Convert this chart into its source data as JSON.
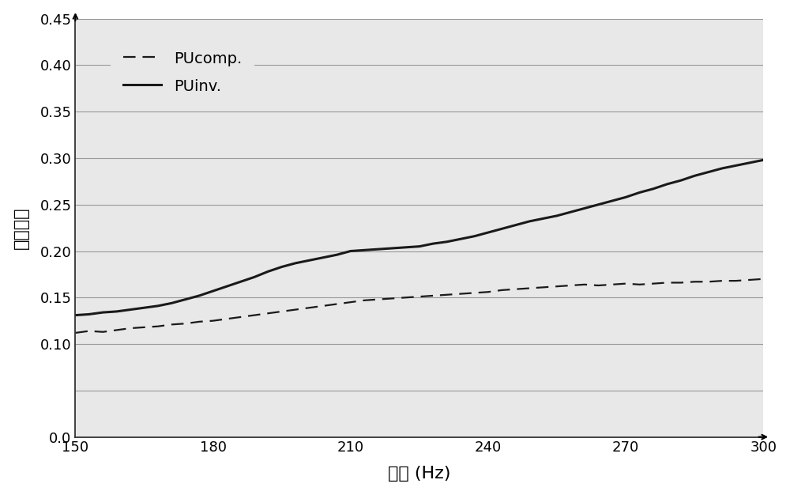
{
  "xlabel": "频率 (Hz)",
  "ylabel": "吸声系数",
  "xlim": [
    150,
    300
  ],
  "ylim": [
    0.0,
    0.45
  ],
  "xticks": [
    150,
    180,
    210,
    240,
    270,
    300
  ],
  "yticks": [
    0.0,
    0.05,
    0.1,
    0.15,
    0.2,
    0.25,
    0.3,
    0.35,
    0.4,
    0.45
  ],
  "ytick_labels": [
    "0.0",
    "",
    "0.10",
    "0.15",
    "0.20",
    "0.25",
    "0.30",
    "0.35",
    "0.40",
    "0.45"
  ],
  "background_color": "#ffffff",
  "plot_bg_color": "#e8e8e8",
  "line_color": "#1a1a1a",
  "grid_color": "#999999",
  "legend_labels": [
    "PUcomp.",
    "PUinv."
  ],
  "PUcomp_x": [
    150,
    153,
    156,
    159,
    162,
    165,
    168,
    171,
    174,
    177,
    180,
    183,
    186,
    189,
    192,
    195,
    198,
    201,
    204,
    207,
    210,
    213,
    216,
    219,
    222,
    225,
    228,
    231,
    234,
    237,
    240,
    243,
    246,
    249,
    252,
    255,
    258,
    261,
    264,
    267,
    270,
    273,
    276,
    279,
    282,
    285,
    288,
    291,
    294,
    297,
    300
  ],
  "PUcomp_y": [
    0.112,
    0.114,
    0.113,
    0.115,
    0.117,
    0.118,
    0.119,
    0.121,
    0.122,
    0.124,
    0.125,
    0.127,
    0.129,
    0.131,
    0.133,
    0.135,
    0.137,
    0.139,
    0.141,
    0.143,
    0.145,
    0.147,
    0.148,
    0.149,
    0.15,
    0.151,
    0.152,
    0.153,
    0.154,
    0.155,
    0.156,
    0.158,
    0.159,
    0.16,
    0.161,
    0.162,
    0.163,
    0.164,
    0.163,
    0.164,
    0.165,
    0.164,
    0.165,
    0.166,
    0.166,
    0.167,
    0.167,
    0.168,
    0.168,
    0.169,
    0.17
  ],
  "PUinv_x": [
    150,
    153,
    156,
    159,
    162,
    165,
    168,
    171,
    174,
    177,
    180,
    183,
    186,
    189,
    192,
    195,
    198,
    201,
    204,
    207,
    210,
    213,
    216,
    219,
    222,
    225,
    228,
    231,
    234,
    237,
    240,
    243,
    246,
    249,
    252,
    255,
    258,
    261,
    264,
    267,
    270,
    273,
    276,
    279,
    282,
    285,
    288,
    291,
    294,
    297,
    300
  ],
  "PUinv_y": [
    0.131,
    0.132,
    0.134,
    0.135,
    0.137,
    0.139,
    0.141,
    0.144,
    0.148,
    0.152,
    0.157,
    0.162,
    0.167,
    0.172,
    0.178,
    0.183,
    0.187,
    0.19,
    0.193,
    0.196,
    0.2,
    0.201,
    0.202,
    0.203,
    0.204,
    0.205,
    0.208,
    0.21,
    0.213,
    0.216,
    0.22,
    0.224,
    0.228,
    0.232,
    0.235,
    0.238,
    0.242,
    0.246,
    0.25,
    0.254,
    0.258,
    0.263,
    0.267,
    0.272,
    0.276,
    0.281,
    0.285,
    0.289,
    0.292,
    0.295,
    0.298
  ]
}
